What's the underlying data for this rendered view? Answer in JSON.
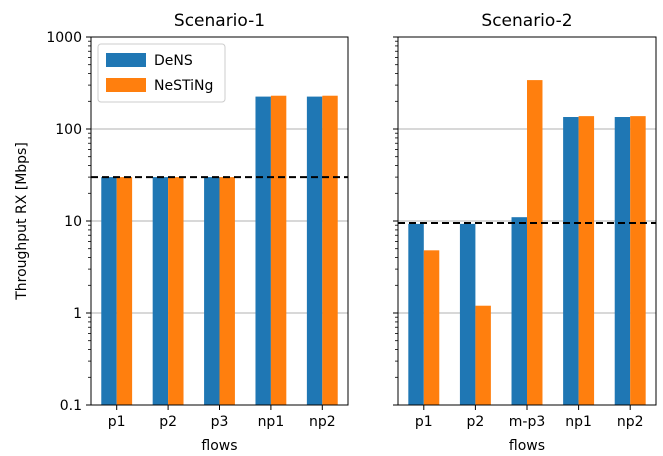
{
  "colors": {
    "dens": "#1f77b4",
    "nesting": "#ff7f0e",
    "grid": "#b0b0b0",
    "axes": "#000000"
  },
  "chart_data": [
    {
      "type": "bar",
      "title": "Scenario-1",
      "xlabel": "flows",
      "ylabel": "Throughput RX [Mbps]",
      "yscale": "log",
      "ylim": [
        0.1,
        1000
      ],
      "yticks": [
        0.1,
        1,
        10,
        100,
        1000
      ],
      "ytick_labels": [
        "0.1",
        "1",
        "10",
        "100",
        "1000"
      ],
      "categories": [
        "p1",
        "p2",
        "p3",
        "np1",
        "np2"
      ],
      "series": [
        {
          "name": "DeNS",
          "values": [
            30,
            30,
            30,
            225,
            225
          ]
        },
        {
          "name": "NeSTiNg",
          "values": [
            30,
            30,
            30,
            230,
            230
          ]
        }
      ],
      "reference_line": 30,
      "grid": "y-major",
      "legend": "top-left"
    },
    {
      "type": "bar",
      "title": "Scenario-2",
      "xlabel": "flows",
      "yscale": "log",
      "ylim": [
        0.1,
        1000
      ],
      "ytick_labels_shown": false,
      "categories": [
        "p1",
        "p2",
        "m-p3",
        "np1",
        "np2"
      ],
      "series": [
        {
          "name": "DeNS",
          "values": [
            9.3,
            9.3,
            11,
            135,
            135
          ]
        },
        {
          "name": "NeSTiNg",
          "values": [
            4.8,
            1.2,
            340,
            138,
            138
          ]
        }
      ],
      "reference_line": 9.5,
      "grid": "y-major"
    }
  ]
}
